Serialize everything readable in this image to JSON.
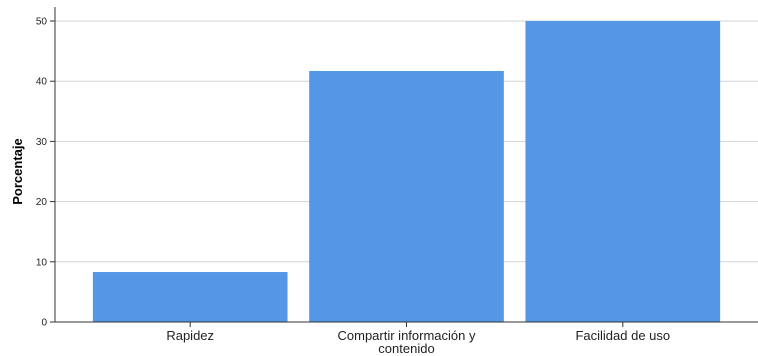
{
  "chart_data": {
    "type": "bar",
    "categories": [
      "Rapidez",
      "Compartir información y contenido",
      "Facilidad de uso"
    ],
    "category_lines": [
      [
        "Rapidez"
      ],
      [
        "Compartir información y",
        "contenido"
      ],
      [
        "Facilidad de uso"
      ]
    ],
    "values": [
      8.3,
      41.7,
      50.0
    ],
    "title": "",
    "xlabel": "",
    "ylabel": "Porcentaje",
    "ylim": [
      0,
      50
    ],
    "yticks": [
      0,
      10,
      20,
      30,
      40,
      50
    ],
    "grid": true,
    "legend": "none",
    "bar_color": "#5596e6",
    "gridline_color": "#d3d3d3"
  }
}
